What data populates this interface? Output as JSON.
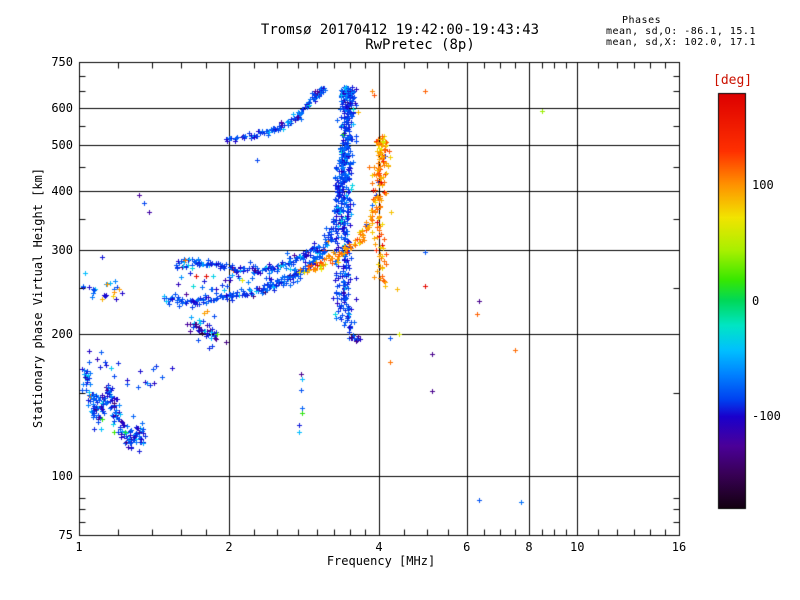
{
  "chart_data": {
    "type": "scatter",
    "title": "Tromsø 20170412 19:42:00-19:43:43",
    "subtitle": "RwPretec (8p)",
    "stats": {
      "header": "Phases",
      "o_line": "mean, sd,O: -86.1, 15.1",
      "x_line": "mean, sd,X: 102.0, 17.1"
    },
    "xlabel": "Frequency [MHz]",
    "ylabel": "Stationary phase Virtual Height [km]",
    "x_axis": {
      "scale": "log",
      "range": [
        1,
        16
      ],
      "major": [
        1,
        2,
        4,
        6,
        8,
        10,
        16
      ],
      "minor": [
        1.2,
        1.4,
        1.6,
        1.8,
        2.25,
        2.5,
        2.75,
        3,
        3.25,
        3.5,
        3.75,
        4.5,
        5,
        5.5,
        6.5,
        7,
        7.5,
        8.5,
        9,
        9.5,
        11,
        12,
        13,
        14,
        15
      ],
      "grid": [
        2,
        4,
        6,
        8,
        10
      ]
    },
    "y_axis": {
      "scale": "log",
      "range": [
        75,
        750
      ],
      "major": [
        750,
        600,
        500,
        400,
        300,
        200,
        100,
        75
      ],
      "minor": [
        700,
        650,
        550,
        450,
        350,
        250,
        150,
        90,
        85,
        80
      ],
      "grid": [
        600,
        500,
        400,
        300,
        200,
        100
      ]
    },
    "colorbar": {
      "label": "[deg]",
      "label_color": "#cc1100",
      "min": -180,
      "max": 180,
      "ticks": [
        100,
        0,
        -100
      ],
      "stops": [
        [
          0.0,
          "#dd0000"
        ],
        [
          0.14,
          "#ff3000"
        ],
        [
          0.22,
          "#ff9100"
        ],
        [
          0.3,
          "#f2e400"
        ],
        [
          0.38,
          "#a8f000"
        ],
        [
          0.45,
          "#38e800"
        ],
        [
          0.5,
          "#00d858"
        ],
        [
          0.56,
          "#00e6c4"
        ],
        [
          0.62,
          "#00c0ff"
        ],
        [
          0.68,
          "#0080ff"
        ],
        [
          0.74,
          "#0040f0"
        ],
        [
          0.78,
          "#1a00cc"
        ],
        [
          0.85,
          "#4b0099"
        ],
        [
          0.92,
          "#380055"
        ],
        [
          1.0,
          "#140012"
        ]
      ]
    },
    "traces": [
      {
        "name": "o-lower-band",
        "n": 280,
        "fj": 0.011,
        "hj": 0.011,
        "phase": -86,
        "psd": 10,
        "sprinkle": [
          [
            -40,
            0.05
          ],
          [
            -130,
            0.02
          ],
          [
            168,
            0.006
          ],
          [
            100,
            0.005
          ]
        ],
        "anchors": [
          [
            1.48,
            237
          ],
          [
            1.62,
            233
          ],
          [
            1.78,
            236
          ],
          [
            1.95,
            239
          ],
          [
            2.15,
            243
          ],
          [
            2.35,
            250
          ],
          [
            2.55,
            257
          ],
          [
            2.75,
            268
          ],
          [
            2.9,
            279
          ],
          [
            3.05,
            295
          ],
          [
            3.15,
            313
          ],
          [
            3.25,
            342
          ],
          [
            3.32,
            385
          ],
          [
            3.36,
            445
          ],
          [
            3.39,
            505
          ]
        ]
      },
      {
        "name": "o-upper-band",
        "n": 150,
        "fj": 0.012,
        "hj": 0.01,
        "phase": -86,
        "psd": 12,
        "sprinkle": [
          [
            -40,
            0.07
          ],
          [
            -130,
            0.03
          ],
          [
            100,
            0.01
          ]
        ],
        "anchors": [
          [
            1.55,
            279
          ],
          [
            1.7,
            285
          ],
          [
            1.85,
            281
          ],
          [
            2.05,
            274
          ],
          [
            2.25,
            272
          ],
          [
            2.45,
            275
          ],
          [
            2.65,
            282
          ],
          [
            2.85,
            294
          ],
          [
            3.0,
            306
          ]
        ]
      },
      {
        "name": "o-band-scatter",
        "n": 55,
        "fj": 0.03,
        "hj": 0.035,
        "phase": -86,
        "psd": 16,
        "sprinkle": [
          [
            -40,
            0.08
          ],
          [
            -130,
            0.06
          ],
          [
            60,
            0.02
          ]
        ],
        "anchors": [
          [
            1.6,
            258
          ],
          [
            2.0,
            256
          ],
          [
            2.4,
            262
          ],
          [
            2.8,
            286
          ]
        ]
      },
      {
        "name": "o-column",
        "n": 400,
        "fj": 0.016,
        "hj": 0.007,
        "phase": -86,
        "psd": 11,
        "sprinkle": [
          [
            -40,
            0.05
          ],
          [
            -135,
            0.015
          ],
          [
            20,
            0.006
          ]
        ],
        "anchors": [
          [
            3.43,
            205
          ],
          [
            3.42,
            260
          ],
          [
            3.41,
            330
          ],
          [
            3.42,
            410
          ],
          [
            3.43,
            490
          ],
          [
            3.45,
            570
          ],
          [
            3.46,
            630
          ],
          [
            3.45,
            662
          ]
        ]
      },
      {
        "name": "o-column-left-streak",
        "n": 60,
        "fj": 0.008,
        "hj": 0.01,
        "phase": -86,
        "psd": 10,
        "sprinkle": [
          [
            -40,
            0.06
          ]
        ],
        "anchors": [
          [
            3.3,
            215
          ],
          [
            3.29,
            290
          ],
          [
            3.31,
            380
          ],
          [
            3.33,
            470
          ]
        ]
      },
      {
        "name": "o-column-foot",
        "n": 16,
        "fj": 0.012,
        "hj": 0.01,
        "phase": -120,
        "psd": 18,
        "sprinkle": [
          [
            -86,
            0.35
          ]
        ],
        "anchors": [
          [
            3.52,
            197
          ],
          [
            3.6,
            193
          ]
        ]
      },
      {
        "name": "upper-arc",
        "n": 130,
        "fj": 0.009,
        "hj": 0.007,
        "phase": -86,
        "psd": 12,
        "sprinkle": [
          [
            -128,
            0.07
          ],
          [
            -40,
            0.05
          ]
        ],
        "anchors": [
          [
            1.95,
            517
          ],
          [
            2.15,
            521
          ],
          [
            2.35,
            530
          ],
          [
            2.55,
            547
          ],
          [
            2.72,
            572
          ],
          [
            2.86,
            602
          ],
          [
            2.96,
            628
          ],
          [
            3.04,
            650
          ],
          [
            3.08,
            660
          ]
        ]
      },
      {
        "name": "x-band",
        "n": 135,
        "fj": 0.011,
        "hj": 0.009,
        "phase": 102,
        "psd": 13,
        "sprinkle": [
          [
            168,
            0.03
          ],
          [
            60,
            0.05
          ],
          [
            20,
            0.02
          ],
          [
            -86,
            0.02
          ]
        ],
        "anchors": [
          [
            2.78,
            271
          ],
          [
            2.95,
            276
          ],
          [
            3.12,
            283
          ],
          [
            3.3,
            292
          ],
          [
            3.5,
            304
          ],
          [
            3.68,
            320
          ],
          [
            3.82,
            342
          ],
          [
            3.92,
            375
          ],
          [
            3.99,
            432
          ],
          [
            4.03,
            492
          ],
          [
            4.05,
            522
          ]
        ]
      },
      {
        "name": "x-column",
        "n": 100,
        "fj": 0.018,
        "hj": 0.009,
        "phase": 102,
        "psd": 16,
        "sprinkle": [
          [
            168,
            0.06
          ],
          [
            60,
            0.05
          ],
          [
            -86,
            0.03
          ]
        ],
        "anchors": [
          [
            4.03,
            252
          ],
          [
            4.02,
            305
          ],
          [
            4.03,
            365
          ],
          [
            4.04,
            425
          ],
          [
            4.05,
            475
          ],
          [
            4.05,
            518
          ]
        ]
      },
      {
        "name": "x-top-points",
        "points": [
          [
            3.88,
            650,
            105
          ],
          [
            3.9,
            640,
            120
          ],
          [
            3.63,
            588,
            88
          ],
          [
            4.95,
            652,
            115
          ]
        ]
      },
      {
        "name": "e-region-cluster",
        "n": 200,
        "fj": 0.011,
        "hj": 0.032,
        "phase": -86,
        "psd": 13,
        "sprinkle": [
          [
            -40,
            0.09
          ],
          [
            -130,
            0.03
          ],
          [
            20,
            0.012
          ],
          [
            100,
            0.006
          ]
        ],
        "anchors": [
          [
            1.02,
            167
          ],
          [
            1.045,
            154
          ],
          [
            1.065,
            143
          ],
          [
            1.09,
            134
          ],
          [
            1.115,
            141
          ],
          [
            1.14,
            151
          ],
          [
            1.165,
            147
          ],
          [
            1.19,
            134
          ],
          [
            1.225,
            124
          ],
          [
            1.265,
            119
          ],
          [
            1.305,
            125
          ],
          [
            1.345,
            121
          ]
        ]
      },
      {
        "name": "e-region-fringe",
        "n": 22,
        "fj": 0.02,
        "hj": 0.03,
        "phase": -86,
        "psd": 15,
        "sprinkle": [
          [
            20,
            0.09
          ],
          [
            -40,
            0.12
          ]
        ],
        "anchors": [
          [
            1.05,
            182
          ],
          [
            1.12,
            177
          ],
          [
            1.25,
            161
          ],
          [
            1.4,
            156
          ],
          [
            1.47,
            169
          ]
        ]
      },
      {
        "name": "left-sparse",
        "n": 26,
        "fj": 0.02,
        "hj": 0.04,
        "phase": -86,
        "psd": 14,
        "sprinkle": [
          [
            -40,
            0.1
          ],
          [
            100,
            0.05
          ],
          [
            -130,
            0.05
          ]
        ],
        "anchors": [
          [
            1.01,
            252
          ],
          [
            1.08,
            248
          ],
          [
            1.15,
            242
          ],
          [
            1.22,
            252
          ]
        ]
      },
      {
        "name": "purple-blob",
        "n": 42,
        "fj": 0.014,
        "hj": 0.028,
        "phase": -123,
        "psd": 18,
        "sprinkle": [
          [
            -86,
            0.35
          ],
          [
            -40,
            0.08
          ]
        ],
        "anchors": [
          [
            1.66,
            211
          ],
          [
            1.74,
            206
          ],
          [
            1.82,
            203
          ],
          [
            1.88,
            200
          ]
        ]
      },
      {
        "name": "band-extra-points",
        "points": [
          [
            1.78,
            221,
            95
          ],
          [
            1.81,
            223,
            100
          ],
          [
            1.89,
            200,
            25
          ],
          [
            1.72,
            264,
            168
          ],
          [
            1.8,
            264,
            172
          ],
          [
            1.63,
            286,
            110
          ],
          [
            1.97,
            192,
            -135
          ],
          [
            2.28,
            465,
            -85
          ]
        ]
      },
      {
        "name": "f2p8-strip-points",
        "points": [
          [
            2.79,
            164,
            -130
          ],
          [
            2.8,
            160,
            -45
          ],
          [
            2.79,
            152,
            -80
          ],
          [
            2.8,
            139,
            -75
          ],
          [
            2.8,
            136,
            15
          ],
          [
            2.77,
            128,
            -95
          ],
          [
            2.77,
            124,
            -45
          ]
        ]
      },
      {
        "name": "isolated-points",
        "points": [
          [
            8.5,
            590,
            40
          ],
          [
            4.95,
            297,
            -80
          ],
          [
            4.1,
            285,
            110
          ],
          [
            4.05,
            265,
            115
          ],
          [
            4.95,
            252,
            170
          ],
          [
            4.35,
            248,
            88
          ],
          [
            6.36,
            234,
            -130
          ],
          [
            6.3,
            220,
            115
          ],
          [
            4.38,
            200,
            60
          ],
          [
            4.2,
            196,
            -80
          ],
          [
            5.1,
            181,
            -130
          ],
          [
            4.2,
            174,
            110
          ],
          [
            7.5,
            185,
            112
          ],
          [
            5.1,
            151,
            -130
          ],
          [
            6.36,
            89,
            -80
          ],
          [
            7.7,
            88,
            -70
          ],
          [
            1.32,
            392,
            -125
          ],
          [
            1.35,
            378,
            -85
          ],
          [
            1.38,
            362,
            -120
          ],
          [
            3.35,
            638,
            -40
          ]
        ]
      }
    ]
  }
}
